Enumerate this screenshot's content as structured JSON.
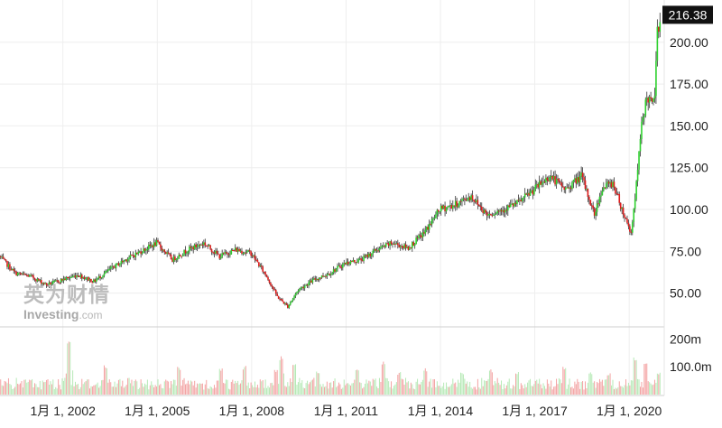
{
  "watermark": {
    "brand_cn": "英为财情",
    "brand_en": "Investing",
    "brand_suffix": ".com"
  },
  "colors": {
    "up": "#2ed12e",
    "down": "#e01b1b",
    "grid": "#eeeeee",
    "axis_text": "#222222",
    "price_tag_bg": "#111111",
    "price_tag_text": "#ffffff"
  },
  "chart_data": [
    {
      "type": "candlestick",
      "title": "",
      "xlabel": "",
      "ylabel": "",
      "x_ticks": [
        "1月 1, 2002",
        "1月 1, 2005",
        "1月 1, 2008",
        "1月 1, 2011",
        "1月 1, 2014",
        "1月 1, 2017",
        "1月 1, 2020"
      ],
      "y_ticks": [
        "50.00",
        "75.00",
        "100.00",
        "125.00",
        "150.00",
        "175.00",
        "200.00"
      ],
      "ylim": [
        32,
        222
      ],
      "last_price_label": "216.38",
      "last_price": 216.38,
      "x_start": "2000-01",
      "x_end": "2021-01",
      "anchors": [
        [
          "2000-01",
          72
        ],
        [
          "2000-07",
          62
        ],
        [
          "2001-01",
          60
        ],
        [
          "2001-07",
          55
        ],
        [
          "2002-01",
          58
        ],
        [
          "2002-07",
          61
        ],
        [
          "2003-01",
          57
        ],
        [
          "2003-07",
          64
        ],
        [
          "2004-01",
          70
        ],
        [
          "2004-07",
          75
        ],
        [
          "2005-01",
          80
        ],
        [
          "2005-07",
          70
        ],
        [
          "2006-01",
          76
        ],
        [
          "2006-07",
          80
        ],
        [
          "2007-01",
          72
        ],
        [
          "2007-07",
          76
        ],
        [
          "2008-01",
          74
        ],
        [
          "2008-07",
          60
        ],
        [
          "2008-11",
          48
        ],
        [
          "2009-03",
          42
        ],
        [
          "2009-07",
          52
        ],
        [
          "2010-01",
          58
        ],
        [
          "2010-07",
          62
        ],
        [
          "2011-01",
          68
        ],
        [
          "2011-07",
          70
        ],
        [
          "2012-01",
          76
        ],
        [
          "2012-07",
          80
        ],
        [
          "2013-01",
          77
        ],
        [
          "2013-07",
          86
        ],
        [
          "2014-01",
          100
        ],
        [
          "2014-07",
          103
        ],
        [
          "2015-01",
          108
        ],
        [
          "2015-07",
          97
        ],
        [
          "2016-01",
          100
        ],
        [
          "2016-07",
          104
        ],
        [
          "2017-01",
          112
        ],
        [
          "2017-07",
          120
        ],
        [
          "2018-01",
          112
        ],
        [
          "2018-07",
          120
        ],
        [
          "2018-12",
          97
        ],
        [
          "2019-03",
          113
        ],
        [
          "2019-07",
          116
        ],
        [
          "2019-11",
          98
        ],
        [
          "2020-02",
          86
        ],
        [
          "2020-04",
          115
        ],
        [
          "2020-06",
          150
        ],
        [
          "2020-08",
          168
        ],
        [
          "2020-10",
          162
        ],
        [
          "2020-11",
          170
        ],
        [
          "2020-12",
          205
        ],
        [
          "2021-01",
          216.38
        ]
      ]
    },
    {
      "type": "bar",
      "title": "",
      "y_ticks": [
        "100.0m",
        "200m"
      ],
      "ylim": [
        0,
        230
      ],
      "unit": "m",
      "peaks": [
        [
          "2002-03",
          215
        ],
        [
          "2003-05",
          105
        ],
        [
          "2005-09",
          102
        ],
        [
          "2007-01",
          98
        ],
        [
          "2007-10",
          104
        ],
        [
          "2008-10",
          92
        ],
        [
          "2008-12",
          140
        ],
        [
          "2009-05",
          118
        ],
        [
          "2010-02",
          86
        ],
        [
          "2011-05",
          98
        ],
        [
          "2012-03",
          120
        ],
        [
          "2012-09",
          82
        ],
        [
          "2013-07",
          95
        ],
        [
          "2014-09",
          80
        ],
        [
          "2015-08",
          92
        ],
        [
          "2016-06",
          82
        ],
        [
          "2017-12",
          104
        ],
        [
          "2018-10",
          85
        ],
        [
          "2019-05",
          80
        ],
        [
          "2020-03",
          140
        ],
        [
          "2020-07",
          112
        ],
        [
          "2020-12",
          85
        ]
      ]
    }
  ]
}
